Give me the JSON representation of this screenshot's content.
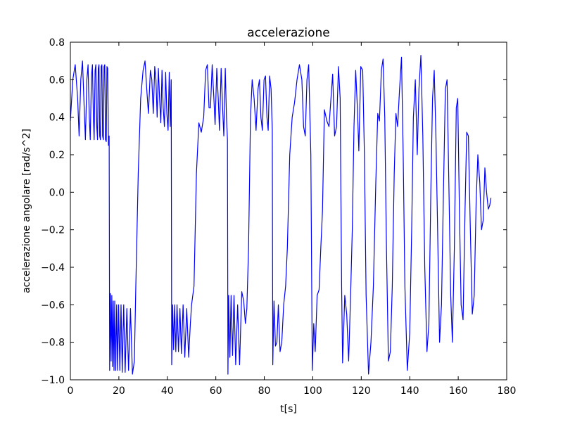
{
  "chart_data": {
    "type": "line",
    "title": "accelerazione",
    "x_label": "t[s]",
    "y_label": "accelerazione angolare [rad/s^2]",
    "color": "#0000ff",
    "xlim": [
      0,
      180
    ],
    "ylim": [
      -1.0,
      0.8
    ],
    "xticks": [
      0,
      20,
      40,
      60,
      80,
      100,
      120,
      140,
      160,
      180
    ],
    "yticks": [
      {
        "value": -1.0,
        "label": "−1.0"
      },
      {
        "value": -0.8,
        "label": "−0.8"
      },
      {
        "value": -0.6,
        "label": "−0.6"
      },
      {
        "value": -0.4,
        "label": "−0.4"
      },
      {
        "value": -0.2,
        "label": "−0.2"
      },
      {
        "value": 0,
        "label": "0.0"
      },
      0.2,
      0.4,
      0.6,
      0.8
    ],
    "x": [
      0,
      1,
      2,
      3,
      3.6,
      4.3,
      5,
      5.7,
      6.2,
      6.8,
      7.3,
      7.8,
      8.2,
      8.7,
      9.1,
      9.5,
      9.8,
      10.2,
      10.5,
      10.9,
      11.2,
      11.5,
      11.8,
      12.1,
      12.4,
      12.7,
      13,
      13.3,
      13.6,
      13.9,
      14.2,
      14.5,
      14.8,
      15.1,
      15.4,
      15.7,
      16,
      16.2,
      16.5,
      16.8,
      17.1,
      17.4,
      17.7,
      18,
      18.3,
      18.7,
      19.1,
      19.5,
      19.9,
      20.4,
      20.9,
      21.4,
      22,
      22.6,
      23.3,
      24,
      24.8,
      25.6,
      26.4,
      27,
      28,
      29,
      30,
      30.8,
      31.5,
      32.2,
      33,
      33.6,
      34.2,
      34.8,
      35.3,
      35.8,
      36.3,
      36.8,
      37.3,
      37.8,
      38.3,
      38.8,
      39.3,
      39.8,
      40.3,
      40.8,
      41.2,
      41.6,
      41.8,
      42.2,
      42.6,
      43,
      43.5,
      44,
      44.6,
      45.2,
      45.8,
      46.5,
      47.2,
      48,
      48.8,
      49.5,
      50,
      51,
      52,
      53,
      54,
      55,
      55.8,
      56.5,
      57.2,
      57.8,
      58.5,
      59.2,
      59.7,
      60.4,
      61,
      61.5,
      62.2,
      62.8,
      63.3,
      63.9,
      64.4,
      64.8,
      65,
      65.3,
      65.8,
      66.3,
      66.9,
      67.5,
      68.2,
      69,
      69.8,
      70.7,
      71.5,
      72.2,
      72.8,
      73.5,
      74.3,
      75,
      75.8,
      76.6,
      77.4,
      78,
      78.6,
      79.2,
      79.9,
      80.5,
      81.1,
      81.6,
      82.2,
      82.8,
      83.3,
      83.5,
      84,
      84.6,
      85.2,
      85.8,
      86.5,
      87.2,
      88,
      88.8,
      89.5,
      90.5,
      91.5,
      92.5,
      93.5,
      94.5,
      95.5,
      96.2,
      96.9,
      97.6,
      98.3,
      99.2,
      99.8,
      100.4,
      101,
      101.8,
      102.6,
      103.3,
      104,
      104.8,
      105.8,
      106.7,
      107.5,
      108.2,
      109,
      109.8,
      110.6,
      111.3,
      111.9,
      112.3,
      113.2,
      114,
      114.8,
      115.6,
      116.3,
      117,
      117.7,
      118.4,
      119,
      119.8,
      120.6,
      121.3,
      122,
      123,
      124,
      125,
      126,
      126.8,
      127.5,
      128.3,
      129,
      129.7,
      130.4,
      131.2,
      132,
      132.8,
      133.6,
      134.3,
      135,
      135.8,
      136.6,
      137.3,
      138,
      139,
      140,
      140.8,
      141.5,
      142.3,
      143.1,
      143.8,
      144.6,
      145.4,
      146.2,
      147.1,
      147.9,
      148.7,
      149.4,
      150.1,
      150.8,
      151.5,
      152.3,
      153.1,
      153.9,
      154.7,
      155.4,
      156.2,
      156.9,
      157.6,
      158.4,
      159.2,
      159.8,
      160.5,
      161.2,
      162,
      162.8,
      163.5,
      164.2,
      165,
      165.8,
      166.6,
      167.4,
      168.1,
      168.9,
      169.6,
      170.3,
      171,
      171.7,
      172.4,
      173,
      173.5
    ],
    "values": [
      0.38,
      0.6,
      0.68,
      0.5,
      0.3,
      0.6,
      0.7,
      0.45,
      0.28,
      0.6,
      0.68,
      0.4,
      0.28,
      0.62,
      0.68,
      0.4,
      0.28,
      0.65,
      0.68,
      0.35,
      0.28,
      0.66,
      0.68,
      0.3,
      0.28,
      0.67,
      0.68,
      0.3,
      0.28,
      0.67,
      0.68,
      0.28,
      0.27,
      0.67,
      0.66,
      0.25,
      0.3,
      -0.95,
      -0.54,
      -0.9,
      -0.55,
      -0.93,
      -0.58,
      -0.95,
      -0.58,
      -0.95,
      -0.6,
      -0.95,
      -0.6,
      -0.95,
      -0.6,
      -0.96,
      -0.6,
      -0.96,
      -0.62,
      -0.95,
      -0.62,
      -0.97,
      -0.9,
      -0.5,
      0.1,
      0.5,
      0.65,
      0.7,
      0.55,
      0.42,
      0.65,
      0.6,
      0.42,
      0.67,
      0.6,
      0.4,
      0.66,
      0.5,
      0.37,
      0.65,
      0.45,
      0.35,
      0.64,
      0.42,
      0.33,
      0.64,
      0.35,
      0.6,
      -0.92,
      -0.6,
      -0.84,
      -0.6,
      -0.85,
      -0.6,
      -0.85,
      -0.62,
      -0.86,
      -0.6,
      -0.88,
      -0.62,
      -0.88,
      -0.7,
      -0.6,
      -0.5,
      0.1,
      0.37,
      0.32,
      0.4,
      0.65,
      0.68,
      0.45,
      0.45,
      0.68,
      0.5,
      0.36,
      0.66,
      0.5,
      0.33,
      0.66,
      0.45,
      0.3,
      0.66,
      0.4,
      0.28,
      -0.97,
      -0.55,
      -0.88,
      -0.55,
      -0.87,
      -0.55,
      -0.92,
      -0.6,
      -0.92,
      -0.53,
      -0.58,
      -0.7,
      -0.62,
      -0.3,
      0.4,
      0.6,
      0.5,
      0.33,
      0.55,
      0.6,
      0.4,
      0.33,
      0.6,
      0.62,
      0.4,
      0.33,
      0.62,
      0.55,
      0.33,
      -0.92,
      -0.58,
      -0.82,
      -0.8,
      -0.6,
      -0.85,
      -0.8,
      -0.6,
      -0.5,
      -0.3,
      0.2,
      0.4,
      0.48,
      0.6,
      0.68,
      0.6,
      0.35,
      0.3,
      0.6,
      0.68,
      0.2,
      -0.95,
      -0.7,
      -0.85,
      -0.55,
      -0.52,
      -0.3,
      -0.1,
      0.44,
      0.38,
      0.35,
      0.5,
      0.63,
      0.3,
      0.35,
      0.67,
      0.5,
      -0.5,
      -0.91,
      -0.55,
      -0.65,
      -0.9,
      -0.55,
      -0.2,
      0.35,
      0.65,
      0.45,
      0.22,
      0.67,
      0.65,
      0.2,
      -0.55,
      -0.97,
      -0.8,
      -0.5,
      0.05,
      0.42,
      0.38,
      0.65,
      0.71,
      0.4,
      -0.3,
      -0.9,
      -0.85,
      -0.5,
      0.1,
      0.42,
      0.35,
      0.55,
      0.72,
      0.2,
      -0.5,
      -0.95,
      -0.75,
      -0.2,
      0.4,
      0.6,
      0.2,
      0.55,
      0.73,
      0.3,
      -0.4,
      -0.85,
      -0.7,
      0.0,
      0.5,
      0.65,
      0.3,
      -0.2,
      -0.8,
      -0.6,
      0.0,
      0.55,
      0.6,
      0.0,
      -0.55,
      -0.8,
      -0.3,
      0.45,
      0.5,
      -0.1,
      -0.6,
      -0.68,
      -0.1,
      0.32,
      0.3,
      -0.2,
      -0.65,
      -0.55,
      -0.05,
      0.2,
      0.05,
      -0.2,
      -0.15,
      0.13,
      0.0,
      -0.09,
      -0.07,
      -0.03
    ]
  }
}
